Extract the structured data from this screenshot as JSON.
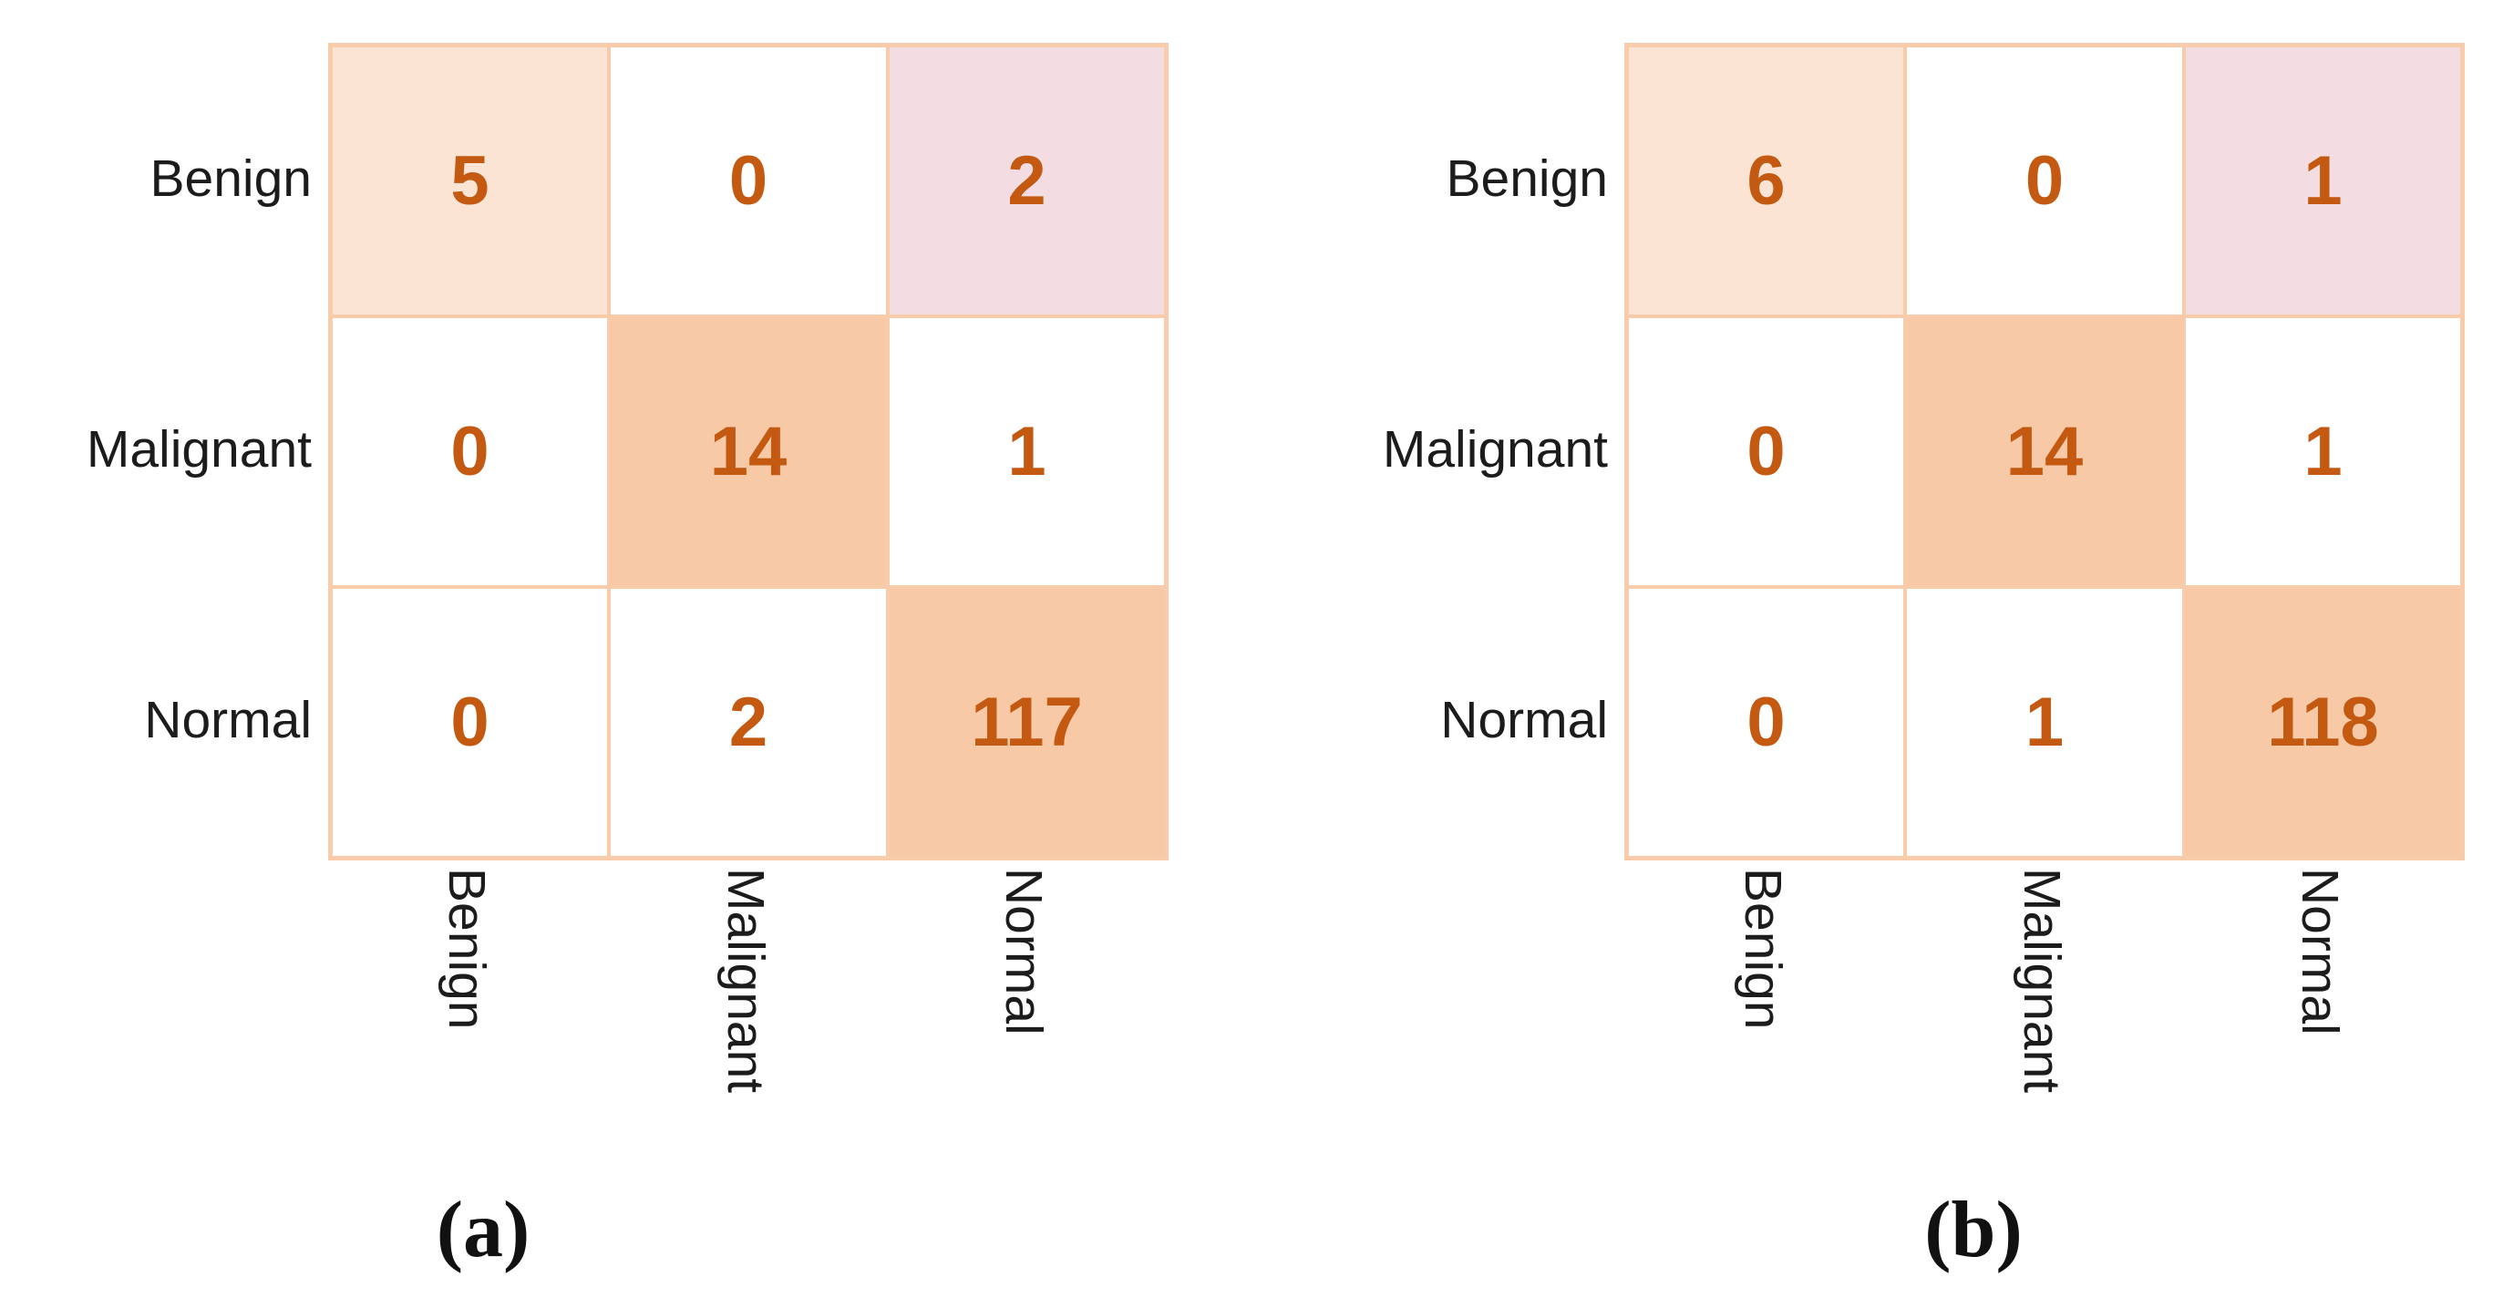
{
  "colors": {
    "cell_light": "#FBE4D3",
    "cell_medium": "#F7C9A6",
    "cell_pink": "#F4DDE2",
    "grid_border": "#F8CCAA",
    "value_text": "#C45A11",
    "label_text": "#1C1C1C"
  },
  "chart_data": [
    {
      "type": "heatmap",
      "panel_label": "(a)",
      "y_labels": [
        "Benign",
        "Malignant",
        "Normal"
      ],
      "x_labels": [
        "Benign",
        "Malignant",
        "Normal"
      ],
      "matrix": [
        [
          5,
          0,
          2
        ],
        [
          0,
          14,
          1
        ],
        [
          0,
          2,
          117
        ]
      ],
      "cell_shades": [
        [
          "light",
          "none",
          "pink"
        ],
        [
          "none",
          "medium",
          "none"
        ],
        [
          "none",
          "none",
          "medium"
        ]
      ],
      "legend_position": "none",
      "grid": true
    },
    {
      "type": "heatmap",
      "panel_label": "(b)",
      "y_labels": [
        "Benign",
        "Malignant",
        "Normal"
      ],
      "x_labels": [
        "Benign",
        "Malignant",
        "Normal"
      ],
      "matrix": [
        [
          6,
          0,
          1
        ],
        [
          0,
          14,
          1
        ],
        [
          0,
          1,
          118
        ]
      ],
      "cell_shades": [
        [
          "light",
          "none",
          "pink"
        ],
        [
          "none",
          "medium",
          "none"
        ],
        [
          "none",
          "none",
          "medium"
        ]
      ],
      "legend_position": "none",
      "grid": true
    }
  ]
}
